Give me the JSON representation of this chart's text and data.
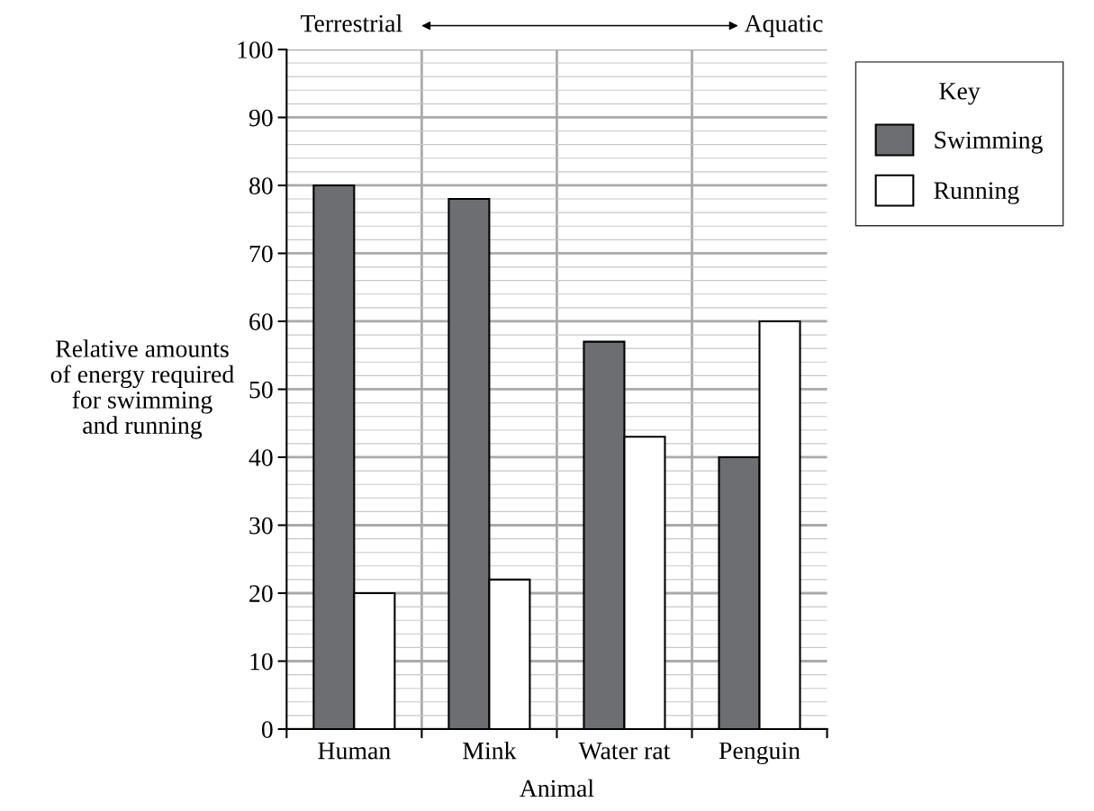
{
  "chart_data": {
    "type": "bar",
    "xlabel": "Animal",
    "ylabel": "Relative amounts\nof energy required\nfor swimming\nand running",
    "categories": [
      "Human",
      "Mink",
      "Water rat",
      "Penguin"
    ],
    "series": [
      {
        "name": "Swimming",
        "color": "#6d6e71",
        "values": [
          80,
          78,
          57,
          40
        ]
      },
      {
        "name": "Running",
        "color": "#ffffff",
        "values": [
          20,
          22,
          43,
          60
        ]
      }
    ],
    "ylim": [
      0,
      100
    ],
    "yticks": [
      0,
      10,
      20,
      30,
      40,
      50,
      60,
      70,
      80,
      90,
      100
    ],
    "grid": true,
    "legend": "top right",
    "legend_title": "Key",
    "annotations": [
      "Terrestrial",
      "Aquatic"
    ]
  }
}
